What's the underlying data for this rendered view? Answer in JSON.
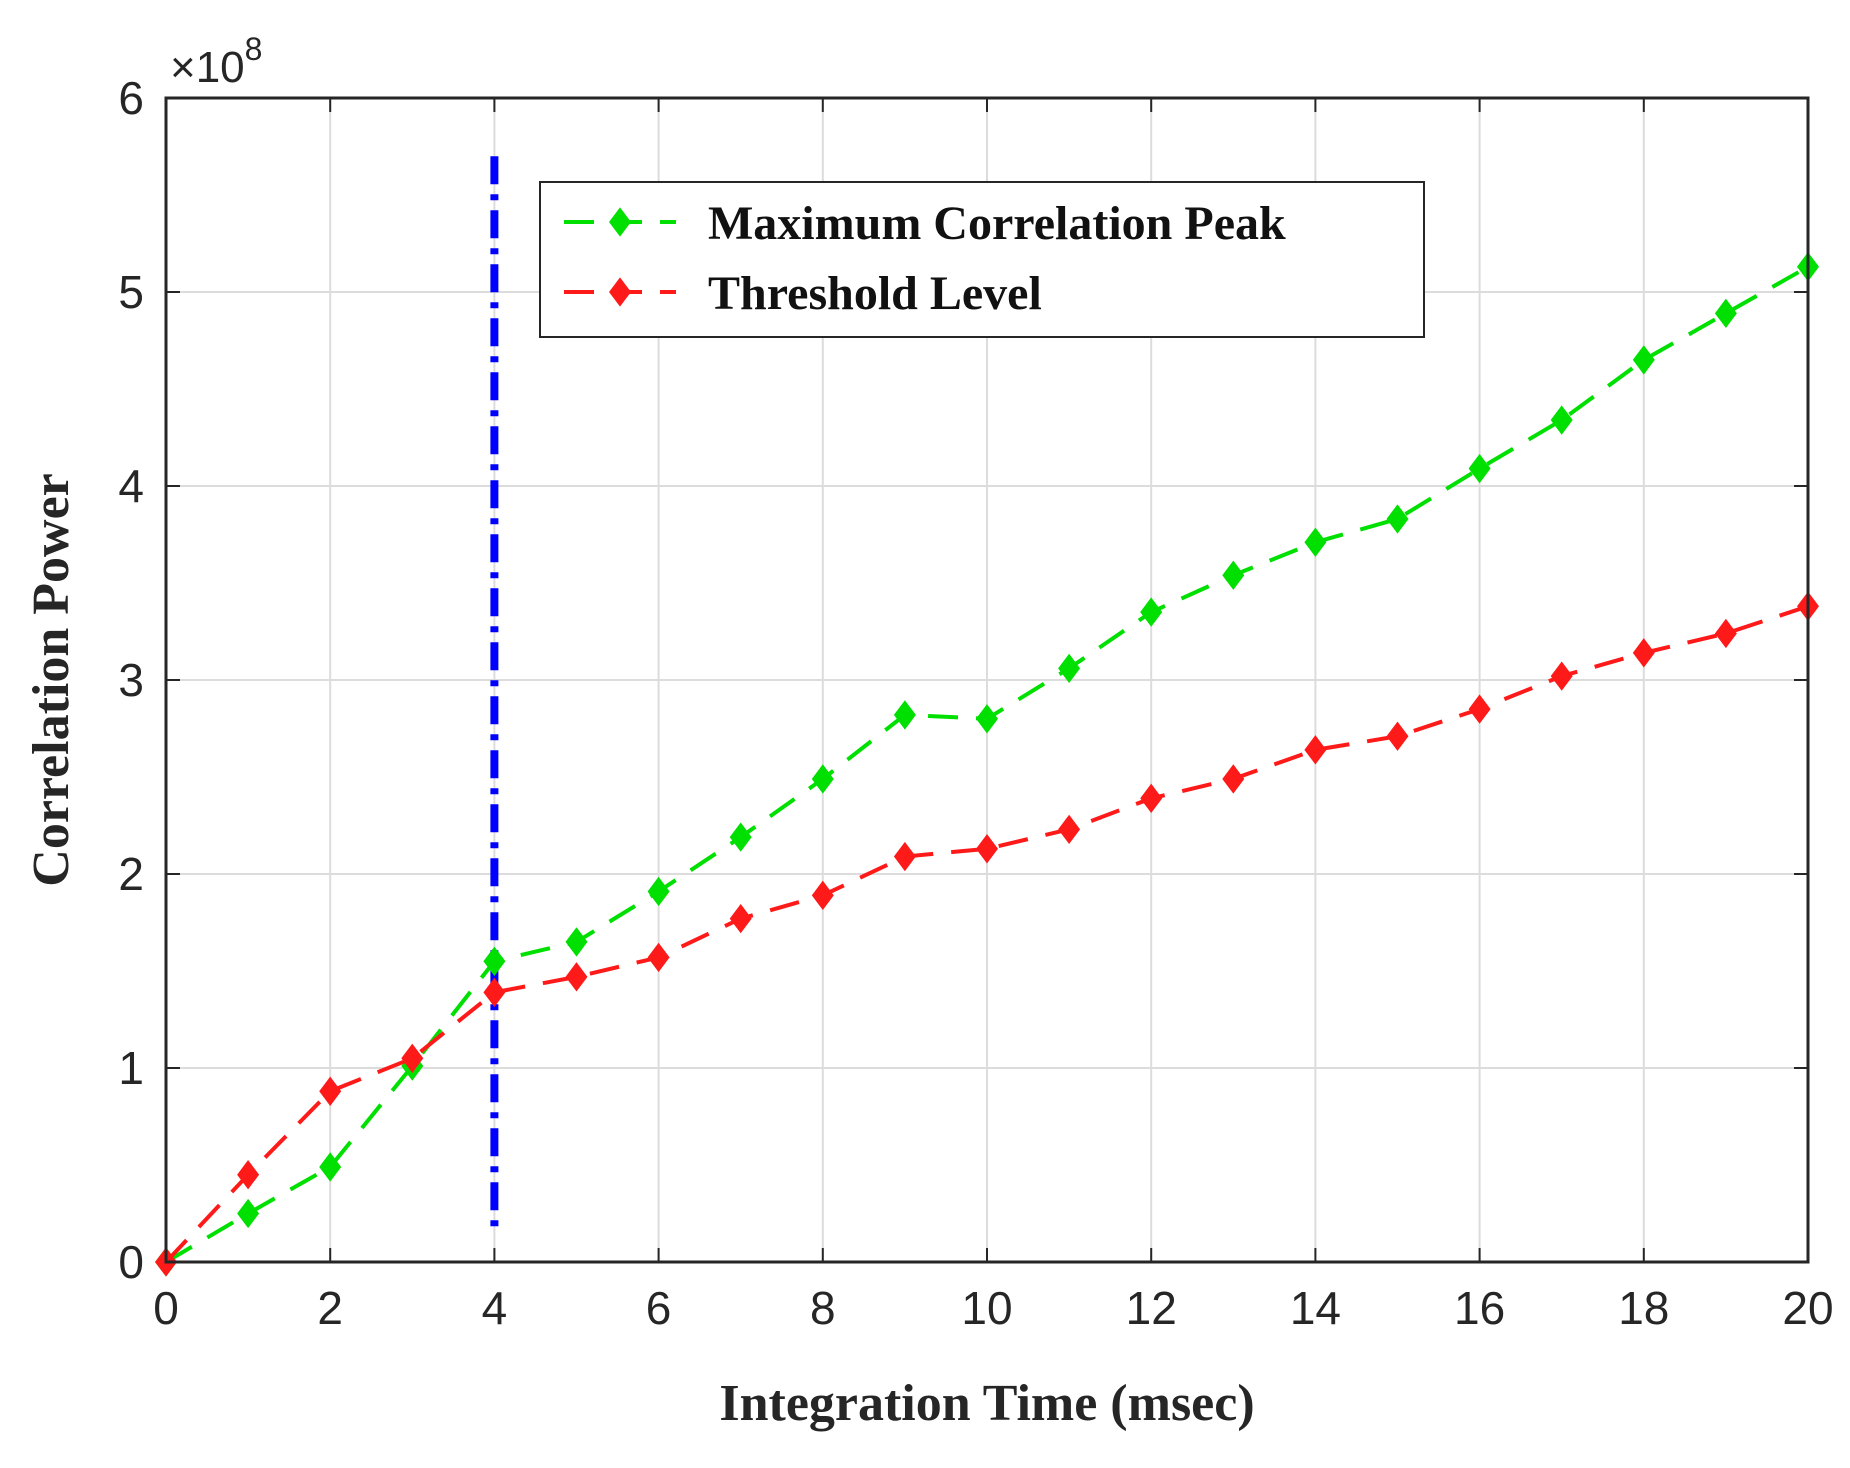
{
  "chart_data": {
    "type": "line",
    "title": "",
    "xlabel": "Integration Time (msec)",
    "ylabel": "Correlation Power",
    "xlim": [
      0,
      20
    ],
    "ylim": [
      0,
      6
    ],
    "y_scale_label": {
      "base": "×10",
      "exponent": "8"
    },
    "xticks": [
      "0",
      "2",
      "4",
      "6",
      "8",
      "10",
      "12",
      "14",
      "16",
      "18",
      "20"
    ],
    "yticks": [
      "0",
      "1",
      "2",
      "3",
      "4",
      "5",
      "6"
    ],
    "grid": true,
    "legend_position": "top-center",
    "x": [
      0,
      1,
      2,
      3,
      4,
      5,
      6,
      7,
      8,
      9,
      10,
      11,
      12,
      13,
      14,
      15,
      16,
      17,
      18,
      19,
      20
    ],
    "series": [
      {
        "name": "Maximum Correlation Peak",
        "color": "#00e000",
        "line_style": "dashed",
        "marker": "diamond",
        "values": [
          0.0,
          0.25,
          0.49,
          1.01,
          1.55,
          1.65,
          1.91,
          2.19,
          2.49,
          2.82,
          2.8,
          3.06,
          3.35,
          3.54,
          3.71,
          3.83,
          4.09,
          4.34,
          4.65,
          4.89,
          5.13
        ]
      },
      {
        "name": "Threshold Level",
        "color": "#ff1a1a",
        "line_style": "dashed",
        "marker": "diamond",
        "values": [
          0.0,
          0.45,
          0.88,
          1.05,
          1.39,
          1.47,
          1.57,
          1.77,
          1.89,
          2.09,
          2.13,
          2.23,
          2.39,
          2.49,
          2.64,
          2.71,
          2.85,
          3.02,
          3.14,
          3.24,
          3.38
        ]
      }
    ],
    "annotations": [
      {
        "type": "vertical_line",
        "x": 4,
        "y_range": [
          0.15,
          5.7
        ],
        "color": "#0000ff",
        "line_style": "dash-dot"
      }
    ]
  }
}
